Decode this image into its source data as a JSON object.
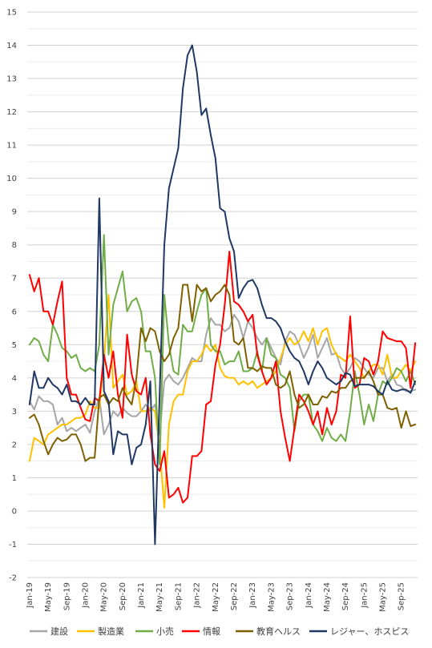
{
  "chart_data": {
    "type": "line",
    "title": "",
    "xlabel": "",
    "ylabel": "",
    "ylim": [
      -2,
      15
    ],
    "yticks": [
      -2,
      -1,
      0,
      1,
      2,
      3,
      4,
      5,
      6,
      7,
      8,
      9,
      10,
      11,
      12,
      13,
      14,
      15
    ],
    "grid": true,
    "legend_position": "bottom",
    "x_tick_labels": [
      "Jan-19",
      "May-19",
      "Sep-19",
      "Jan-20",
      "May-20",
      "Sep-20",
      "Jan-21",
      "May-21",
      "Sep-21",
      "Jan-22",
      "May-22",
      "Sep-22",
      "Jan-23",
      "May-23",
      "Sep-23",
      "Jan-24",
      "May-24",
      "Sep-24",
      "Jan-25",
      "May-25",
      "Sep-25"
    ],
    "x": [
      "2019-01",
      "2019-02",
      "2019-03",
      "2019-04",
      "2019-05",
      "2019-06",
      "2019-07",
      "2019-08",
      "2019-09",
      "2019-10",
      "2019-11",
      "2019-12",
      "2020-01",
      "2020-02",
      "2020-03",
      "2020-04",
      "2020-05",
      "2020-06",
      "2020-07",
      "2020-08",
      "2020-09",
      "2020-10",
      "2020-11",
      "2020-12",
      "2021-01",
      "2021-02",
      "2021-03",
      "2021-04",
      "2021-05",
      "2021-06",
      "2021-07",
      "2021-08",
      "2021-09",
      "2021-10",
      "2021-11",
      "2021-12",
      "2022-01",
      "2022-02",
      "2022-03",
      "2022-04",
      "2022-05",
      "2022-06",
      "2022-07",
      "2022-08",
      "2022-09",
      "2022-10",
      "2022-11",
      "2022-12",
      "2023-01",
      "2023-02",
      "2023-03",
      "2023-04",
      "2023-05",
      "2023-06",
      "2023-07",
      "2023-08",
      "2023-09",
      "2023-10",
      "2023-11",
      "2023-12",
      "2024-01",
      "2024-02",
      "2024-03",
      "2024-04",
      "2024-05",
      "2024-06",
      "2024-07",
      "2024-08",
      "2024-09",
      "2024-10",
      "2024-11",
      "2024-12",
      "2025-01",
      "2025-02",
      "2025-03",
      "2025-04",
      "2025-05",
      "2025-06",
      "2025-07",
      "2025-08",
      "2025-09",
      "2025-10",
      "2025-11",
      "2025-12"
    ],
    "series": [
      {
        "name": "建設",
        "color": "#a5a5a5",
        "values": [
          3.3,
          3.05,
          3.45,
          3.3,
          3.3,
          3.2,
          2.6,
          2.8,
          2.4,
          2.5,
          2.4,
          2.5,
          2.6,
          2.35,
          3.0,
          3.4,
          2.3,
          2.6,
          3.0,
          2.85,
          3.1,
          2.95,
          2.85,
          2.85,
          3.0,
          3.2,
          3.0,
          3.2,
          2.3,
          3.9,
          4.1,
          3.9,
          3.8,
          4.0,
          4.3,
          4.6,
          4.5,
          4.5,
          5.3,
          5.8,
          5.6,
          5.6,
          5.4,
          5.5,
          5.9,
          5.7,
          5.2,
          5.7,
          5.5,
          5.2,
          5.0,
          5.2,
          4.9,
          4.6,
          4.4,
          5.1,
          5.4,
          5.3,
          5.0,
          4.6,
          4.9,
          5.3,
          4.6,
          4.9,
          5.2,
          4.7,
          4.75,
          4.3,
          4.1,
          4.3,
          4.6,
          4.5,
          4.3,
          4.1,
          4.0,
          4.3,
          4.3,
          3.9,
          4.1,
          3.8,
          3.75,
          3.6,
          3.6,
          3.65
        ]
      },
      {
        "name": "製造業",
        "color": "#ffc000",
        "values": [
          1.5,
          2.2,
          2.1,
          2.0,
          2.3,
          2.4,
          2.5,
          2.6,
          2.6,
          2.7,
          2.8,
          2.8,
          2.9,
          3.3,
          3.1,
          3.1,
          4.5,
          6.5,
          3.7,
          3.9,
          4.1,
          3.5,
          3.6,
          3.9,
          3.0,
          3.0,
          3.1,
          3.0,
          1.9,
          0.1,
          2.6,
          3.3,
          3.5,
          3.5,
          4.2,
          4.5,
          4.5,
          4.7,
          5.0,
          4.8,
          5.0,
          4.3,
          4.05,
          4.0,
          4.0,
          3.8,
          3.9,
          3.8,
          3.9,
          3.7,
          3.8,
          3.9,
          4.0,
          4.2,
          4.6,
          5.0,
          5.2,
          5.0,
          5.1,
          5.4,
          5.1,
          5.5,
          5.0,
          5.4,
          5.5,
          5.0,
          4.7,
          4.6,
          4.5,
          4.7,
          4.5,
          4.3,
          4.0,
          4.2,
          4.4,
          4.4,
          4.1,
          4.7,
          4.0,
          4.0,
          4.2,
          4.4,
          4.2,
          4.5
        ]
      },
      {
        "name": "小売",
        "color": "#70ad47",
        "values": [
          5.0,
          5.2,
          5.1,
          4.7,
          4.5,
          5.6,
          5.3,
          4.9,
          4.8,
          4.6,
          4.7,
          4.3,
          4.2,
          4.3,
          4.2,
          5.0,
          8.3,
          4.7,
          6.2,
          6.7,
          7.2,
          6.0,
          6.3,
          6.4,
          6.0,
          4.8,
          4.8,
          4.0,
          1.4,
          6.5,
          5.0,
          4.2,
          4.1,
          5.6,
          5.4,
          5.4,
          6.0,
          6.5,
          6.7,
          5.0,
          4.8,
          4.8,
          4.4,
          4.5,
          4.5,
          4.8,
          4.2,
          4.2,
          4.3,
          4.8,
          4.2,
          5.2,
          4.7,
          4.6,
          4.1,
          4.0,
          3.7,
          2.4,
          3.3,
          3.5,
          3.5,
          2.6,
          2.4,
          2.1,
          2.5,
          2.2,
          2.1,
          2.3,
          2.1,
          3.0,
          4.2,
          3.5,
          2.6,
          3.2,
          2.7,
          3.5,
          3.9,
          3.8,
          4.0,
          4.3,
          4.2,
          3.9,
          4.2,
          3.8
        ]
      },
      {
        "name": "情報",
        "color": "#ff0000",
        "values": [
          7.1,
          6.6,
          7.0,
          6.0,
          6.0,
          5.6,
          6.3,
          6.9,
          4.0,
          3.5,
          3.5,
          3.1,
          2.75,
          2.7,
          3.4,
          3.3,
          4.7,
          4.0,
          4.8,
          3.5,
          2.8,
          5.3,
          4.1,
          3.6,
          3.5,
          4.0,
          2.3,
          1.4,
          1.2,
          1.8,
          0.4,
          0.5,
          0.7,
          0.25,
          0.4,
          1.65,
          1.65,
          1.8,
          3.2,
          3.3,
          4.4,
          5.0,
          6.2,
          7.8,
          6.3,
          6.2,
          6.0,
          5.7,
          5.9,
          4.7,
          4.2,
          3.8,
          4.0,
          4.5,
          3.0,
          2.2,
          1.5,
          2.5,
          3.5,
          3.3,
          3.0,
          2.6,
          3.0,
          2.3,
          3.1,
          2.6,
          3.0,
          4.1,
          4.0,
          5.85,
          3.7,
          3.8,
          4.6,
          4.5,
          4.1,
          4.5,
          5.4,
          5.2,
          5.15,
          5.1,
          5.1,
          4.9,
          3.7,
          5.05
        ]
      },
      {
        "name": "教育ヘルス",
        "color": "#7f6000",
        "values": [
          2.8,
          2.9,
          2.6,
          2.1,
          1.7,
          2.0,
          2.2,
          2.1,
          2.15,
          2.3,
          2.3,
          2.0,
          1.5,
          1.6,
          1.6,
          3.4,
          3.5,
          3.2,
          3.4,
          3.3,
          3.7,
          3.4,
          3.2,
          4.0,
          5.5,
          5.1,
          5.5,
          5.4,
          4.8,
          4.5,
          4.7,
          5.2,
          5.5,
          6.8,
          6.8,
          5.7,
          6.8,
          6.6,
          6.7,
          6.3,
          6.5,
          6.6,
          6.8,
          6.5,
          5.1,
          5.0,
          5.2,
          4.3,
          4.3,
          4.2,
          4.35,
          4.3,
          4.3,
          3.8,
          3.7,
          3.8,
          4.2,
          3.5,
          3.1,
          3.2,
          3.5,
          3.2,
          3.2,
          3.45,
          3.4,
          3.6,
          3.55,
          3.7,
          3.7,
          3.9,
          4.0,
          4.0,
          4.0,
          4.2,
          3.9,
          3.5,
          3.5,
          3.1,
          3.05,
          3.1,
          2.5,
          3.0,
          2.55,
          2.6
        ]
      },
      {
        "name": "レジャー、ホスピス",
        "color": "#203864",
        "values": [
          3.2,
          4.2,
          3.7,
          3.7,
          4.0,
          3.8,
          3.7,
          3.5,
          3.8,
          3.3,
          3.3,
          3.2,
          3.4,
          3.2,
          3.2,
          9.4,
          3.6,
          3.3,
          1.7,
          2.4,
          2.3,
          2.3,
          1.4,
          1.9,
          2.0,
          2.6,
          3.9,
          -1.0,
          3.5,
          8.0,
          9.7,
          10.3,
          10.9,
          12.7,
          13.7,
          14.0,
          13.2,
          11.9,
          12.1,
          11.3,
          10.6,
          9.1,
          9.0,
          8.2,
          7.8,
          6.4,
          6.7,
          6.9,
          6.95,
          6.7,
          6.2,
          5.8,
          5.8,
          5.7,
          5.5,
          5.1,
          4.8,
          4.6,
          4.5,
          4.2,
          3.8,
          4.2,
          4.5,
          4.3,
          4.0,
          3.9,
          3.8,
          3.9,
          4.15,
          4.1,
          3.75,
          3.8,
          3.8,
          3.8,
          3.75,
          3.6,
          3.5,
          3.9,
          3.65,
          3.6,
          3.65,
          3.65,
          3.55,
          3.9
        ]
      }
    ]
  }
}
